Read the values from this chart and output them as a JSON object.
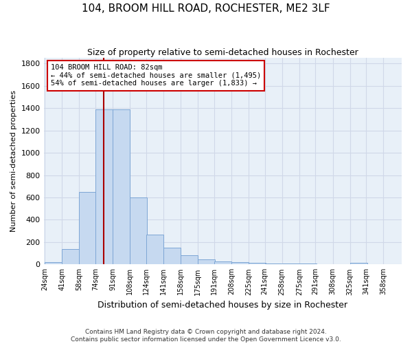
{
  "title1": "104, BROOM HILL ROAD, ROCHESTER, ME2 3LF",
  "title2": "Size of property relative to semi-detached houses in Rochester",
  "xlabel": "Distribution of semi-detached houses by size in Rochester",
  "ylabel": "Number of semi-detached properties",
  "footnote1": "Contains HM Land Registry data © Crown copyright and database right 2024.",
  "footnote2": "Contains public sector information licensed under the Open Government Licence v3.0.",
  "bin_edges": [
    24,
    41,
    58,
    74,
    91,
    108,
    124,
    141,
    158,
    175,
    191,
    208,
    225,
    241,
    258,
    275,
    291,
    308,
    325,
    341,
    358
  ],
  "bar_heights": [
    20,
    140,
    650,
    1390,
    1390,
    600,
    270,
    150,
    80,
    45,
    28,
    20,
    15,
    10,
    5,
    5,
    3,
    2,
    15,
    2
  ],
  "bar_color": "#c6d9f0",
  "bar_edgecolor": "#7da6d5",
  "grid_color": "#d0d8e8",
  "bg_color": "#e8f0f8",
  "vline_x": 82,
  "vline_color": "#aa0000",
  "annotation_text": "104 BROOM HILL ROAD: 82sqm\n← 44% of semi-detached houses are smaller (1,495)\n54% of semi-detached houses are larger (1,833) →",
  "annotation_box_color": "#ffffff",
  "annotation_box_edgecolor": "#cc0000",
  "ylim": [
    0,
    1850
  ],
  "yticks": [
    0,
    200,
    400,
    600,
    800,
    1000,
    1200,
    1400,
    1600,
    1800
  ],
  "tick_labels": [
    "24sqm",
    "41sqm",
    "58sqm",
    "74sqm",
    "91sqm",
    "108sqm",
    "124sqm",
    "141sqm",
    "158sqm",
    "175sqm",
    "191sqm",
    "208sqm",
    "225sqm",
    "241sqm",
    "258sqm",
    "275sqm",
    "291sqm",
    "308sqm",
    "325sqm",
    "341sqm",
    "358sqm"
  ]
}
